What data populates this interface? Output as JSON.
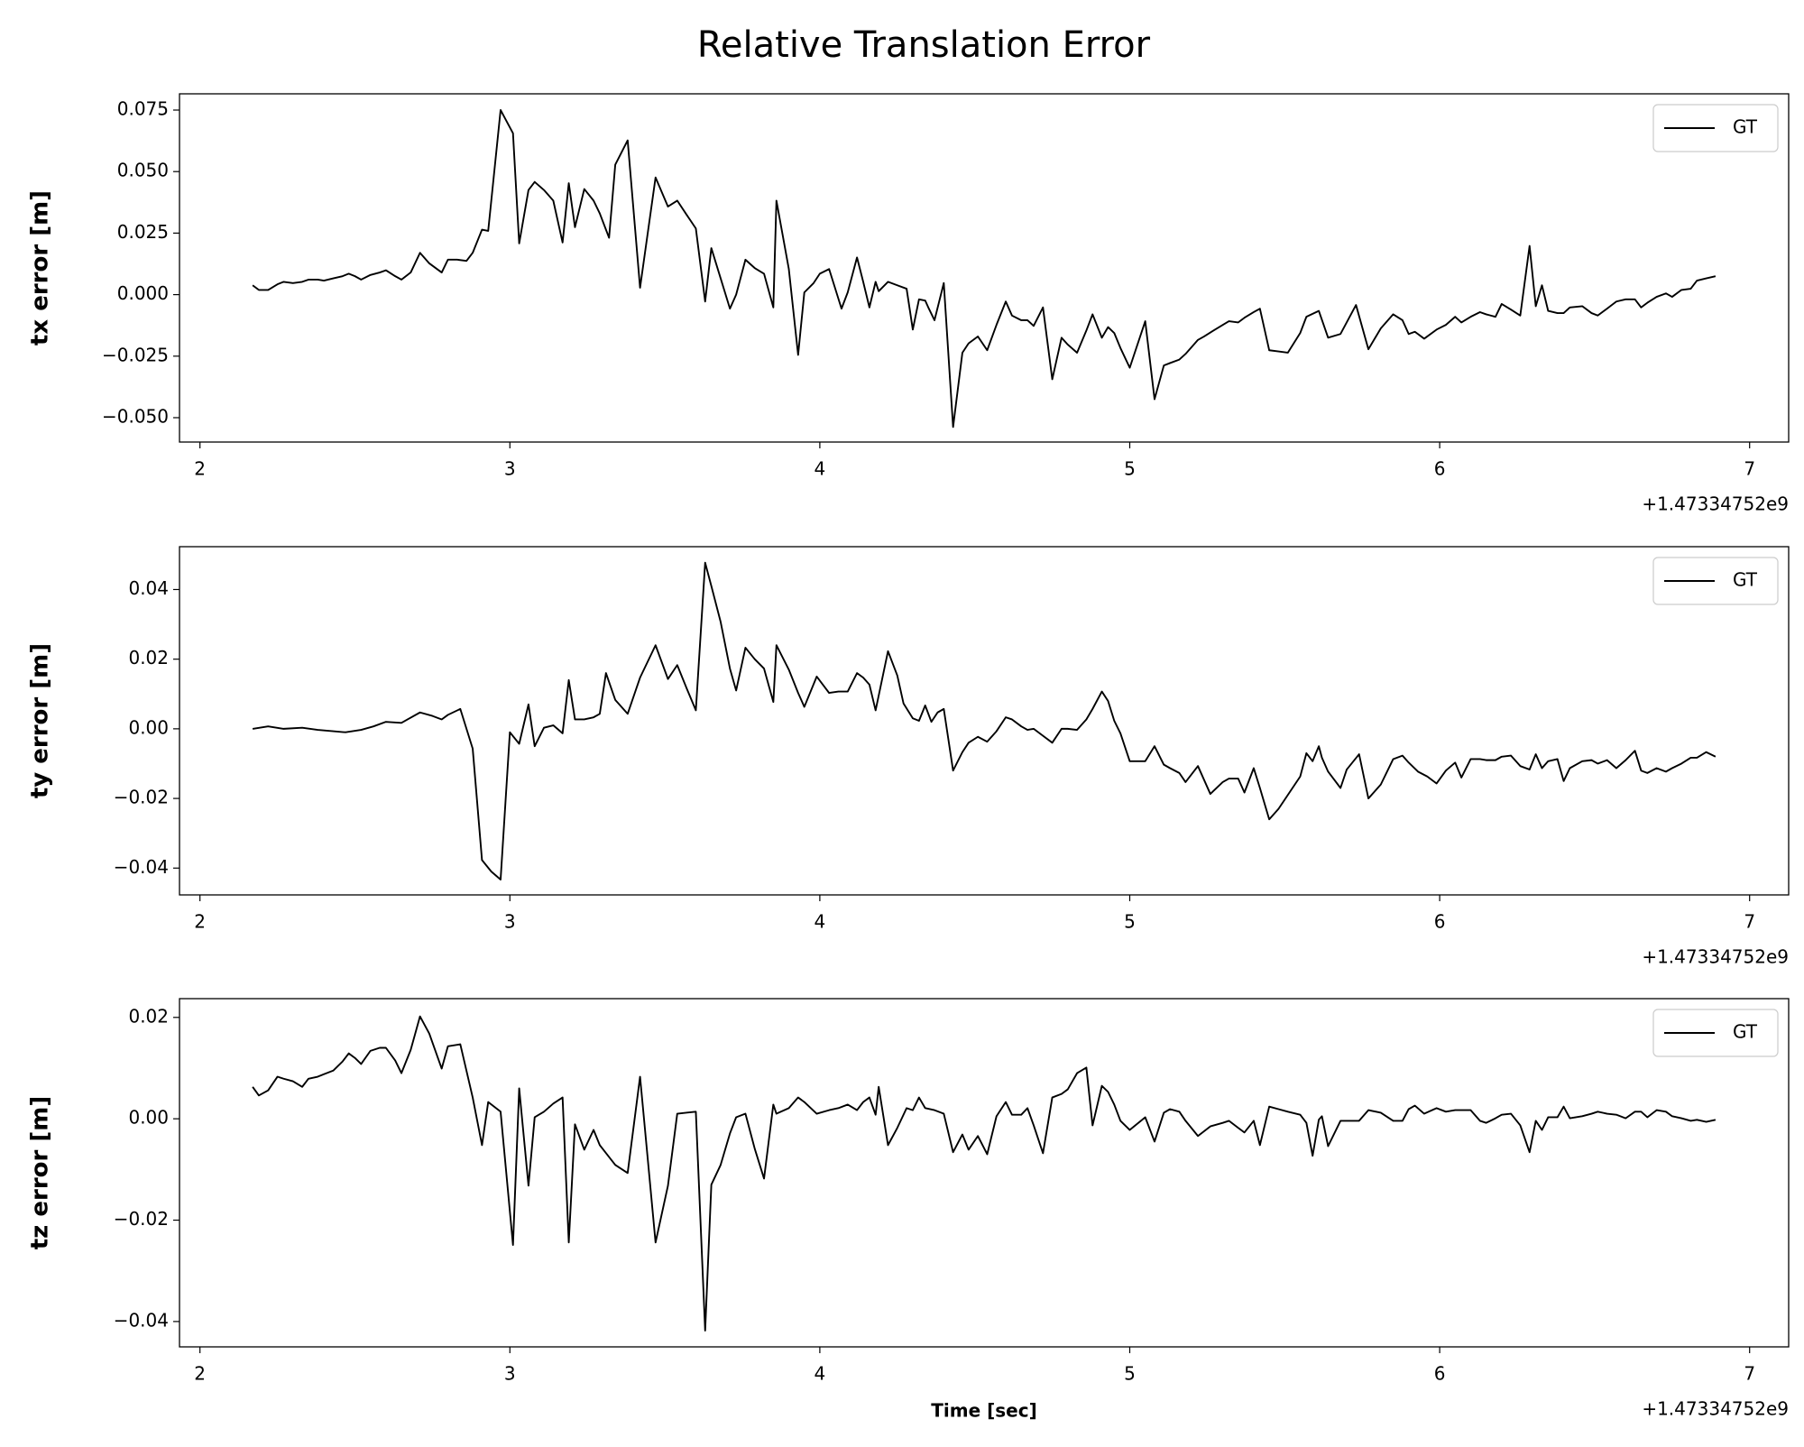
{
  "title": "Relative Translation Error",
  "chart_data": [
    {
      "type": "line",
      "ylabel": "tx error [m]",
      "x": [
        2.17,
        2.19,
        2.22,
        2.25,
        2.27,
        2.3,
        2.33,
        2.35,
        2.38,
        2.4,
        2.43,
        2.46,
        2.48,
        2.5,
        2.52,
        2.55,
        2.58,
        2.6,
        2.63,
        2.65,
        2.68,
        2.71,
        2.74,
        2.78,
        2.8,
        2.83,
        2.86,
        2.88,
        2.91,
        2.93,
        2.97,
        3.01,
        3.03,
        3.06,
        3.08,
        3.11,
        3.14,
        3.17,
        3.19,
        3.21,
        3.24,
        3.27,
        3.29,
        3.32,
        3.34,
        3.38,
        3.42,
        3.47,
        3.51,
        3.54,
        3.57,
        3.6,
        3.63,
        3.65,
        3.68,
        3.71,
        3.73,
        3.76,
        3.79,
        3.82,
        3.85,
        3.86,
        3.9,
        3.93,
        3.95,
        3.98,
        4.0,
        4.03,
        4.07,
        4.09,
        4.12,
        4.14,
        4.16,
        4.18,
        4.19,
        4.22,
        4.25,
        4.28,
        4.3,
        4.32,
        4.34,
        4.35,
        4.37,
        4.4,
        4.43,
        4.46,
        4.48,
        4.51,
        4.54,
        4.57,
        4.6,
        4.62,
        4.65,
        4.67,
        4.69,
        4.72,
        4.75,
        4.78,
        4.8,
        4.83,
        4.86,
        4.88,
        4.91,
        4.93,
        4.95,
        4.97,
        5.0,
        5.05,
        5.08,
        5.11,
        5.13,
        5.16,
        5.18,
        5.22,
        5.24,
        5.27,
        5.3,
        5.32,
        5.35,
        5.37,
        5.4,
        5.42,
        5.45,
        5.48,
        5.51,
        5.55,
        5.57,
        5.61,
        5.64,
        5.68,
        5.73,
        5.77,
        5.81,
        5.85,
        5.88,
        5.9,
        5.92,
        5.95,
        5.99,
        6.02,
        6.05,
        6.07,
        6.1,
        6.13,
        6.15,
        6.18,
        6.2,
        6.23,
        6.26,
        6.29,
        6.31,
        6.33,
        6.35,
        6.38,
        6.4,
        6.42,
        6.46,
        6.49,
        6.51,
        6.54,
        6.57,
        6.6,
        6.63,
        6.65,
        6.67,
        6.7,
        6.73,
        6.75,
        6.78,
        6.81,
        6.83,
        6.86,
        6.89
      ],
      "series": [
        {
          "name": "GT",
          "color": "#000000",
          "values": [
            0.0038,
            0.0019,
            0.0019,
            0.0042,
            0.0052,
            0.0047,
            0.0052,
            0.0061,
            0.0061,
            0.0057,
            0.0066,
            0.0075,
            0.0085,
            0.0075,
            0.0061,
            0.008,
            0.009,
            0.0099,
            0.0075,
            0.0061,
            0.009,
            0.017,
            0.0127,
            0.009,
            0.0142,
            0.0142,
            0.0137,
            0.017,
            0.0264,
            0.0259,
            0.075,
            0.0656,
            0.0208,
            0.0425,
            0.0458,
            0.0425,
            0.0382,
            0.0212,
            0.0453,
            0.0274,
            0.0429,
            0.0382,
            0.033,
            0.0231,
            0.0528,
            0.0627,
            0.0028,
            0.0476,
            0.0358,
            0.0382,
            0.0325,
            0.0269,
            -0.0028,
            0.0189,
            0.0066,
            -0.0057,
            0,
            0.0142,
            0.0108,
            0.0085,
            -0.0052,
            0.0382,
            0.0104,
            -0.0245,
            0.0009,
            0.0047,
            0.0085,
            0.0104,
            -0.0057,
            0.0009,
            0.0151,
            0.0052,
            -0.0052,
            0.0052,
            0.0014,
            0.0052,
            0.0038,
            0.0024,
            -0.0142,
            -0.0019,
            -0.0024,
            -0.0052,
            -0.0104,
            0.0047,
            -0.0538,
            -0.0236,
            -0.0198,
            -0.017,
            -0.0226,
            -0.0123,
            -0.0028,
            -0.0085,
            -0.0104,
            -0.0104,
            -0.0127,
            -0.0052,
            -0.0344,
            -0.0175,
            -0.0203,
            -0.0236,
            -0.0146,
            -0.008,
            -0.0175,
            -0.0132,
            -0.0156,
            -0.0217,
            -0.0297,
            -0.0108,
            -0.0425,
            -0.0288,
            -0.0278,
            -0.0264,
            -0.0241,
            -0.0184,
            -0.017,
            -0.0146,
            -0.0123,
            -0.0108,
            -0.0113,
            -0.0094,
            -0.0071,
            -0.0057,
            -0.0226,
            -0.0231,
            -0.0236,
            -0.0156,
            -0.009,
            -0.0066,
            -0.0175,
            -0.016,
            -0.0042,
            -0.0222,
            -0.0137,
            -0.008,
            -0.0104,
            -0.016,
            -0.0151,
            -0.0179,
            -0.0142,
            -0.0123,
            -0.009,
            -0.0113,
            -0.009,
            -0.0071,
            -0.008,
            -0.009,
            -0.0038,
            -0.0061,
            -0.0085,
            0.0198,
            -0.0047,
            0.0038,
            -0.0066,
            -0.0075,
            -0.0075,
            -0.0052,
            -0.0047,
            -0.0075,
            -0.0085,
            -0.0057,
            -0.0028,
            -0.0019,
            -0.0019,
            -0.0052,
            -0.0033,
            -0.0009,
            0.0005,
            -0.0009,
            0.0019,
            0.0024,
            0.0057,
            0.0066,
            0.0075
          ]
        }
      ],
      "xlim": [
        1.934,
        7.126
      ],
      "ylim": [
        -0.0599,
        0.0816
      ],
      "xticks": [
        2,
        3,
        4,
        5,
        6,
        7
      ],
      "yticks": [
        {
          "value": -0.05,
          "label": "−0.050"
        },
        {
          "value": -0.025,
          "label": "−0.025"
        },
        {
          "value": 0,
          "label": "0.000"
        },
        0.025,
        {
          "value": 0.05,
          "label": "0.050"
        },
        0.075
      ],
      "x_offset_label": "+1.47334752e9",
      "legend": "upper right"
    },
    {
      "type": "line",
      "ylabel": "ty error [m]",
      "x": [
        2.17,
        2.22,
        2.27,
        2.33,
        2.38,
        2.43,
        2.47,
        2.52,
        2.56,
        2.6,
        2.65,
        2.67,
        2.71,
        2.75,
        2.78,
        2.8,
        2.84,
        2.88,
        2.91,
        2.94,
        2.97,
        3.0,
        3.03,
        3.06,
        3.08,
        3.11,
        3.14,
        3.17,
        3.19,
        3.21,
        3.24,
        3.27,
        3.29,
        3.31,
        3.34,
        3.38,
        3.42,
        3.47,
        3.51,
        3.54,
        3.57,
        3.6,
        3.63,
        3.65,
        3.68,
        3.71,
        3.73,
        3.76,
        3.79,
        3.82,
        3.85,
        3.86,
        3.9,
        3.93,
        3.95,
        3.99,
        4.03,
        4.06,
        4.09,
        4.12,
        4.14,
        4.16,
        4.18,
        4.22,
        4.25,
        4.27,
        4.3,
        4.32,
        4.34,
        4.36,
        4.38,
        4.4,
        4.43,
        4.46,
        4.48,
        4.51,
        4.54,
        4.57,
        4.6,
        4.62,
        4.65,
        4.67,
        4.69,
        4.72,
        4.75,
        4.78,
        4.8,
        4.83,
        4.86,
        4.88,
        4.91,
        4.93,
        4.95,
        4.97,
        5.0,
        5.05,
        5.08,
        5.11,
        5.13,
        5.16,
        5.18,
        5.22,
        5.26,
        5.3,
        5.32,
        5.35,
        5.37,
        5.4,
        5.42,
        5.45,
        5.48,
        5.51,
        5.55,
        5.57,
        5.59,
        5.61,
        5.62,
        5.64,
        5.68,
        5.7,
        5.74,
        5.77,
        5.81,
        5.85,
        5.88,
        5.9,
        5.93,
        5.96,
        5.99,
        6.02,
        6.05,
        6.07,
        6.1,
        6.13,
        6.15,
        6.18,
        6.2,
        6.23,
        6.26,
        6.29,
        6.31,
        6.33,
        6.35,
        6.38,
        6.4,
        6.42,
        6.46,
        6.49,
        6.51,
        6.54,
        6.57,
        6.6,
        6.63,
        6.65,
        6.67,
        6.7,
        6.73,
        6.75,
        6.78,
        6.81,
        6.83,
        6.86,
        6.89
      ],
      "series": [
        {
          "name": "GT",
          "color": "#000000",
          "values": [
            0,
            0.0007,
            0,
            0.0003,
            -0.0003,
            -0.0007,
            -0.001,
            -0.0003,
            0.0007,
            0.002,
            0.0017,
            0.0027,
            0.0047,
            0.0037,
            0.0027,
            0.004,
            0.0057,
            -0.0057,
            -0.0377,
            -0.041,
            -0.0433,
            -0.001,
            -0.0043,
            0.007,
            -0.005,
            0.0003,
            0.001,
            -0.0013,
            0.014,
            0.0027,
            0.0027,
            0.0033,
            0.0043,
            0.016,
            0.0083,
            0.0043,
            0.0147,
            0.024,
            0.0143,
            0.0183,
            0.0117,
            0.0053,
            0.0477,
            0.041,
            0.0307,
            0.0173,
            0.011,
            0.0233,
            0.02,
            0.0173,
            0.0077,
            0.024,
            0.017,
            0.0103,
            0.0063,
            0.015,
            0.0103,
            0.0107,
            0.0107,
            0.016,
            0.0147,
            0.0127,
            0.0053,
            0.0223,
            0.0153,
            0.0073,
            0.003,
            0.0023,
            0.0067,
            0.002,
            0.0047,
            0.0057,
            -0.012,
            -0.0067,
            -0.004,
            -0.0023,
            -0.0037,
            -0.0007,
            0.0033,
            0.0027,
            0.0007,
            -0.0003,
            0,
            -0.002,
            -0.004,
            0,
            0,
            -0.0003,
            0.0027,
            0.0057,
            0.0107,
            0.008,
            0.0023,
            -0.0013,
            -0.0093,
            -0.0093,
            -0.005,
            -0.0103,
            -0.0113,
            -0.0127,
            -0.0153,
            -0.0107,
            -0.0187,
            -0.0153,
            -0.0143,
            -0.0143,
            -0.0183,
            -0.0113,
            -0.017,
            -0.026,
            -0.023,
            -0.019,
            -0.0137,
            -0.007,
            -0.0093,
            -0.005,
            -0.0083,
            -0.0123,
            -0.017,
            -0.0117,
            -0.0073,
            -0.02,
            -0.016,
            -0.0087,
            -0.0077,
            -0.0097,
            -0.0123,
            -0.0137,
            -0.0157,
            -0.012,
            -0.0097,
            -0.014,
            -0.0087,
            -0.0087,
            -0.009,
            -0.009,
            -0.008,
            -0.0077,
            -0.0107,
            -0.0117,
            -0.0073,
            -0.0113,
            -0.0093,
            -0.0087,
            -0.015,
            -0.0113,
            -0.0093,
            -0.009,
            -0.01,
            -0.009,
            -0.0113,
            -0.009,
            -0.0063,
            -0.012,
            -0.0127,
            -0.0113,
            -0.0123,
            -0.0113,
            -0.01,
            -0.0083,
            -0.0083,
            -0.0067,
            -0.008
          ]
        }
      ],
      "xlim": [
        1.934,
        7.126
      ],
      "ylim": [
        -0.0477,
        0.0523
      ],
      "xticks": [
        2,
        3,
        4,
        5,
        6,
        7
      ],
      "yticks": [
        {
          "value": -0.04,
          "label": "−0.04"
        },
        {
          "value": -0.02,
          "label": "−0.02"
        },
        {
          "value": 0,
          "label": "0.00"
        },
        0.02,
        0.04
      ],
      "x_offset_label": "+1.47334752e9",
      "legend": "upper right"
    },
    {
      "type": "line",
      "ylabel": "tz error [m]",
      "xlabel": "Time [sec]",
      "x": [
        2.17,
        2.19,
        2.22,
        2.25,
        2.27,
        2.3,
        2.33,
        2.35,
        2.38,
        2.4,
        2.43,
        2.46,
        2.48,
        2.5,
        2.52,
        2.55,
        2.58,
        2.6,
        2.63,
        2.65,
        2.68,
        2.71,
        2.74,
        2.78,
        2.8,
        2.84,
        2.88,
        2.91,
        2.93,
        2.97,
        3.01,
        3.03,
        3.06,
        3.08,
        3.11,
        3.14,
        3.17,
        3.19,
        3.21,
        3.24,
        3.27,
        3.29,
        3.34,
        3.38,
        3.42,
        3.47,
        3.51,
        3.54,
        3.6,
        3.63,
        3.65,
        3.68,
        3.71,
        3.73,
        3.76,
        3.79,
        3.82,
        3.85,
        3.86,
        3.9,
        3.93,
        3.95,
        3.99,
        4.03,
        4.06,
        4.09,
        4.12,
        4.14,
        4.16,
        4.18,
        4.19,
        4.22,
        4.25,
        4.28,
        4.3,
        4.32,
        4.34,
        4.37,
        4.4,
        4.43,
        4.46,
        4.48,
        4.51,
        4.54,
        4.57,
        4.6,
        4.62,
        4.65,
        4.67,
        4.69,
        4.72,
        4.75,
        4.78,
        4.8,
        4.83,
        4.86,
        4.88,
        4.91,
        4.93,
        4.95,
        4.97,
        5.0,
        5.05,
        5.08,
        5.11,
        5.13,
        5.16,
        5.18,
        5.22,
        5.26,
        5.3,
        5.32,
        5.35,
        5.37,
        5.4,
        5.42,
        5.45,
        5.48,
        5.51,
        5.55,
        5.57,
        5.59,
        5.61,
        5.62,
        5.64,
        5.68,
        5.7,
        5.74,
        5.77,
        5.81,
        5.85,
        5.88,
        5.9,
        5.92,
        5.95,
        5.99,
        6.02,
        6.05,
        6.07,
        6.1,
        6.13,
        6.15,
        6.18,
        6.2,
        6.23,
        6.26,
        6.29,
        6.31,
        6.33,
        6.35,
        6.38,
        6.4,
        6.42,
        6.46,
        6.49,
        6.51,
        6.54,
        6.57,
        6.6,
        6.63,
        6.65,
        6.67,
        6.7,
        6.73,
        6.75,
        6.78,
        6.81,
        6.83,
        6.86,
        6.89
      ],
      "series": [
        {
          "name": "GT",
          "color": "#000000",
          "values": [
            0.0063,
            0.0046,
            0.0056,
            0.0083,
            0.0079,
            0.0074,
            0.0063,
            0.0079,
            0.0083,
            0.0088,
            0.0095,
            0.0113,
            0.0129,
            0.012,
            0.0108,
            0.0134,
            0.014,
            0.014,
            0.0115,
            0.009,
            0.0136,
            0.0202,
            0.0168,
            0.0099,
            0.0143,
            0.0147,
            0.0042,
            -0.0052,
            0.0033,
            0.0014,
            -0.0249,
            0.006,
            -0.0132,
            0.0003,
            0.0014,
            0.003,
            0.0042,
            -0.0244,
            -0.0011,
            -0.0061,
            -0.0022,
            -0.0052,
            -0.0091,
            -0.0107,
            0.0083,
            -0.0244,
            -0.0132,
            0.001,
            0.0014,
            -0.0418,
            -0.013,
            -0.0091,
            -0.0029,
            0.0003,
            0.001,
            -0.0059,
            -0.0118,
            0.0028,
            0.001,
            0.0021,
            0.0042,
            0.0033,
            0.001,
            0.0017,
            0.0021,
            0.0028,
            0.0017,
            0.0033,
            0.0042,
            0.0008,
            0.0063,
            -0.0052,
            -0.0018,
            0.0021,
            0.0017,
            0.0042,
            0.0021,
            0.0017,
            0.001,
            -0.0066,
            -0.0031,
            -0.0061,
            -0.0034,
            -0.007,
            0.0005,
            0.0033,
            0.0008,
            0.0008,
            0.0021,
            -0.0013,
            -0.0068,
            0.0042,
            0.0049,
            0.0058,
            0.009,
            0.0101,
            -0.0013,
            0.0065,
            0.0053,
            0.0028,
            -0.0004,
            -0.0022,
            0.0003,
            -0.0045,
            0.0012,
            0.0019,
            0.0014,
            -0.0004,
            -0.0034,
            -0.0015,
            -0.0008,
            -0.0004,
            -0.0018,
            -0.0027,
            -0.0004,
            -0.0052,
            0.0024,
            0.0019,
            0.0014,
            0.0008,
            -0.0008,
            -0.0073,
            -0.0002,
            0.0005,
            -0.0054,
            -0.0004,
            -0.0004,
            -0.0004,
            0.0017,
            0.0012,
            -0.0004,
            -0.0004,
            0.0019,
            0.0026,
            0.001,
            0.0021,
            0.0014,
            0.0017,
            0.0017,
            0.0017,
            -0.0004,
            -0.0008,
            0.0001,
            0.0008,
            0.001,
            -0.0013,
            -0.0066,
            -0.0004,
            -0.0022,
            0.0003,
            0.0003,
            0.0024,
            0.0001,
            0.0005,
            0.001,
            0.0014,
            0.001,
            0.0008,
            0.0001,
            0.0014,
            0.0014,
            0.0003,
            0.0017,
            0.0014,
            0.0005,
            0.0001,
            -0.0004,
            -0.0002,
            -0.0006,
            -0.0002
          ]
        }
      ],
      "xlim": [
        1.934,
        7.126
      ],
      "ylim": [
        -0.045,
        0.0237
      ],
      "xticks": [
        2,
        3,
        4,
        5,
        6,
        7
      ],
      "yticks": [
        {
          "value": -0.04,
          "label": "−0.04"
        },
        {
          "value": -0.02,
          "label": "−0.02"
        },
        {
          "value": 0,
          "label": "0.00"
        },
        0.02
      ],
      "x_offset_label": "+1.47334752e9",
      "legend": "upper right"
    }
  ]
}
